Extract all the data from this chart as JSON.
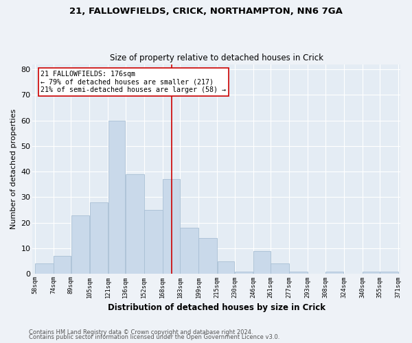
{
  "title1": "21, FALLOWFIELDS, CRICK, NORTHAMPTON, NN6 7GA",
  "title2": "Size of property relative to detached houses in Crick",
  "xlabel": "Distribution of detached houses by size in Crick",
  "ylabel": "Number of detached properties",
  "bar_color": "#c9d9ea",
  "bar_edge_color": "#a8bfd4",
  "vline_x": 176,
  "vline_color": "#cc0000",
  "annotation_text": "21 FALLOWFIELDS: 176sqm\n← 79% of detached houses are smaller (217)\n21% of semi-detached houses are larger (58) →",
  "annotation_box_color": "#ffffff",
  "annotation_box_edge": "#cc0000",
  "bins": [
    58,
    74,
    89,
    105,
    121,
    136,
    152,
    168,
    183,
    199,
    215,
    230,
    246,
    261,
    277,
    293,
    308,
    324,
    340,
    355,
    371
  ],
  "counts": [
    4,
    7,
    23,
    28,
    60,
    39,
    25,
    37,
    18,
    14,
    5,
    1,
    9,
    4,
    1,
    0,
    1,
    0,
    1,
    1
  ],
  "ylim": [
    0,
    82
  ],
  "yticks": [
    0,
    10,
    20,
    30,
    40,
    50,
    60,
    70,
    80
  ],
  "footer1": "Contains HM Land Registry data © Crown copyright and database right 2024.",
  "footer2": "Contains public sector information licensed under the Open Government Licence v3.0.",
  "bg_color": "#eef2f7",
  "plot_bg_color": "#e4ecf4",
  "grid_color": "#ffffff"
}
